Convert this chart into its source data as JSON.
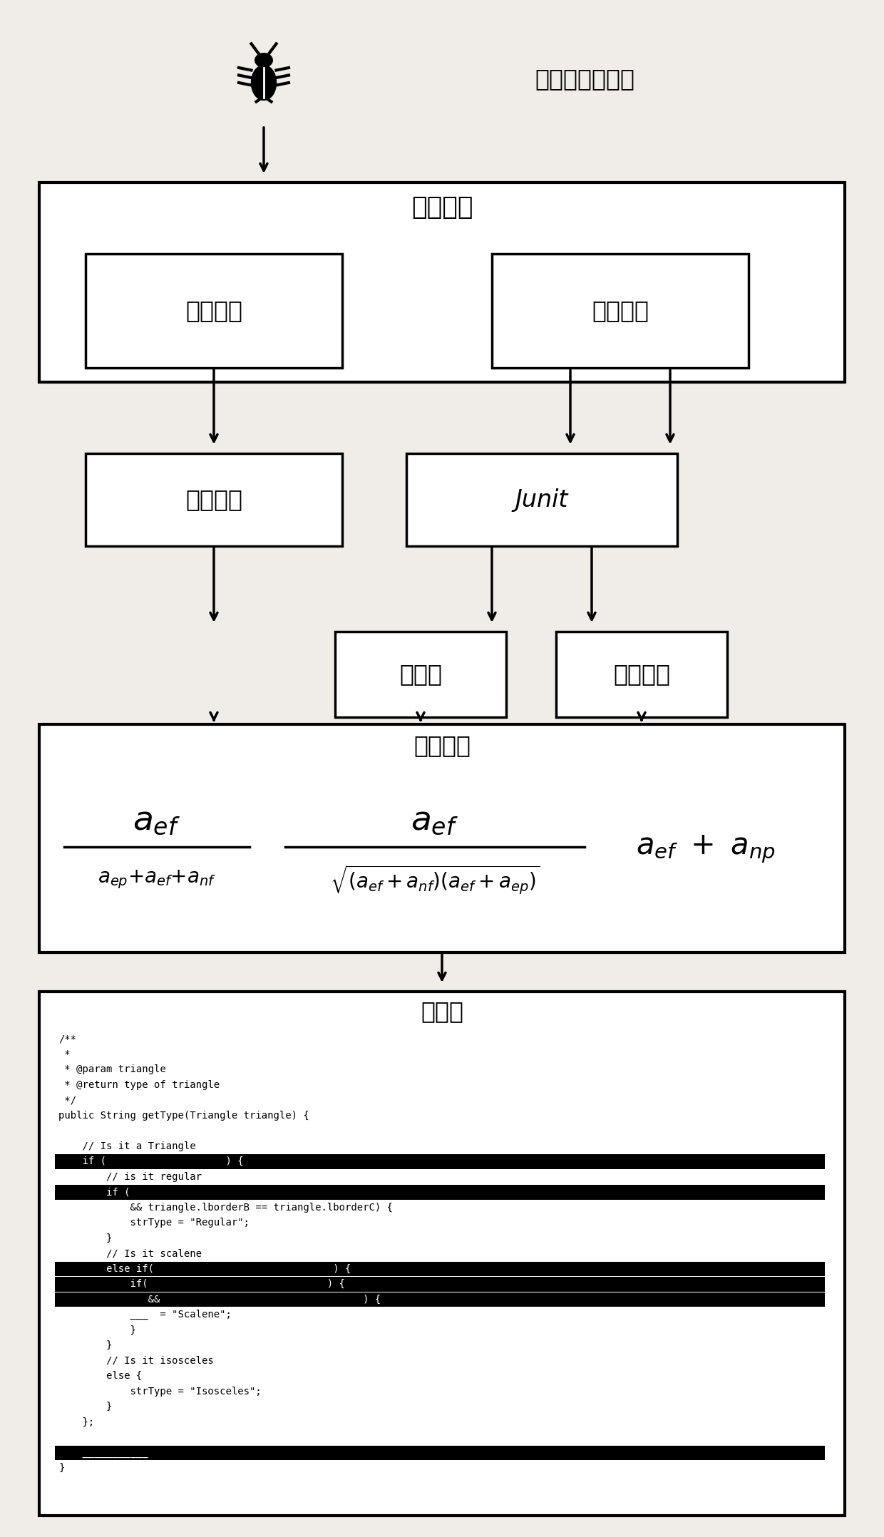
{
  "bg_color": "#f0ede8",
  "title_label": "包含缺陷的程序",
  "box1_label": "分析工具",
  "box2a_label": "静态分析",
  "box2b_label": "动态分析",
  "box3a_label": "静态分析",
  "box3b_label": "Junit",
  "box4a_label": "覆盖率",
  "box4b_label": "执行结果",
  "box5_label": "频谱分析",
  "box6_label": "可视化",
  "paper_bg": "#e8e4dc"
}
